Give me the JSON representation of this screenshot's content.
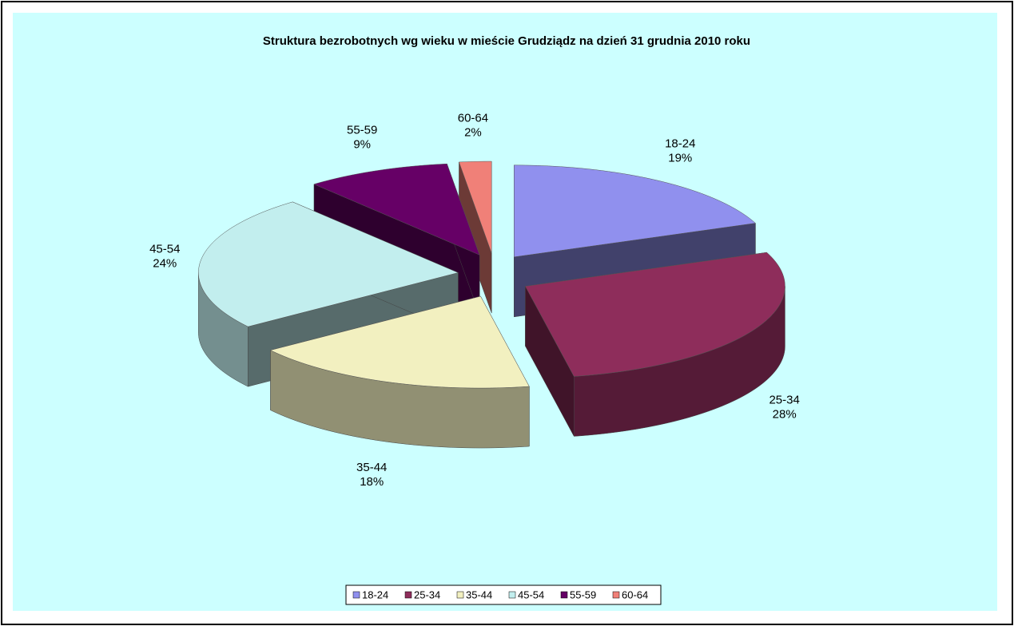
{
  "chart_data": {
    "type": "pie",
    "title": "Struktura bezrobotnych wg wieku w mieście Grudziądz na dzień 31 grudnia 2010 roku",
    "categories": [
      "18-24",
      "25-34",
      "35-44",
      "45-54",
      "55-59",
      "60-64"
    ],
    "values": [
      19,
      28,
      18,
      24,
      9,
      2
    ],
    "value_labels": [
      "19%",
      "28%",
      "18%",
      "24%",
      "9%",
      "2%"
    ],
    "colors": [
      "#9090ee",
      "#8e2d5b",
      "#f2f0c0",
      "#c2eeee",
      "#660066",
      "#f08078"
    ],
    "legend": "bottom"
  }
}
